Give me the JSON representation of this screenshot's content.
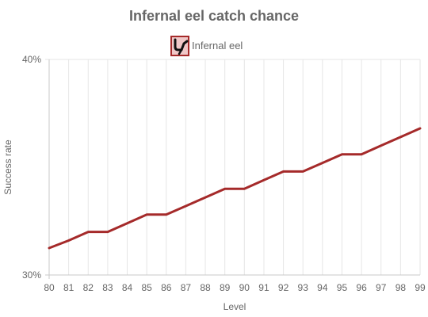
{
  "chart_data": {
    "type": "line",
    "title": "Infernal eel catch chance",
    "xlabel": "Level",
    "ylabel": "Success rate",
    "x": [
      80,
      81,
      82,
      83,
      84,
      85,
      86,
      87,
      88,
      89,
      90,
      91,
      92,
      93,
      94,
      95,
      96,
      97,
      98,
      99
    ],
    "x_tick_labels": [
      "80",
      "81",
      "82",
      "83",
      "84",
      "85",
      "86",
      "87",
      "88",
      "89",
      "90",
      "91",
      "92",
      "93",
      "94",
      "95",
      "96",
      "97",
      "98",
      "99"
    ],
    "y_tick_labels": [
      "40%",
      "30%"
    ],
    "ylim": [
      30,
      40
    ],
    "grid": true,
    "legend_position": "top-center",
    "series": [
      {
        "name": "Infernal eel",
        "color": "#a52a2a",
        "values": [
          31.25,
          31.6,
          32.0,
          32.0,
          32.4,
          32.8,
          32.8,
          33.2,
          33.6,
          34.0,
          34.0,
          34.4,
          34.8,
          34.8,
          35.2,
          35.6,
          35.6,
          36.0,
          36.4,
          36.8
        ]
      }
    ],
    "legend_icon": "infernal-eel-item-icon"
  },
  "colors": {
    "line": "#a52a2a",
    "grid": "#e6e6e6",
    "axis": "#c8c8c8",
    "text": "#666666",
    "icon_bg": "#f0c8c8",
    "icon_border": "#a52a2a"
  }
}
